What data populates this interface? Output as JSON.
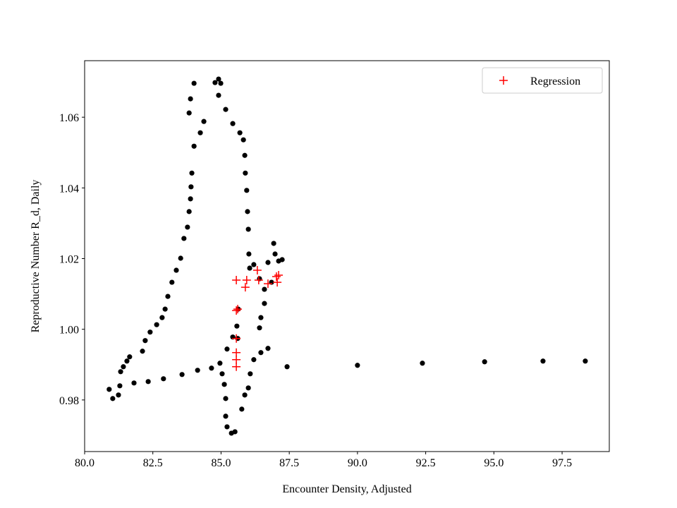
{
  "chart_data": {
    "type": "scatter",
    "xlabel": "Encounter Density, Adjusted",
    "ylabel": "Reproductive Number R_d, Daily",
    "xlim": [
      80.0,
      99.23
    ],
    "ylim": [
      0.9654,
      1.076
    ],
    "xticks": [
      {
        "value": 80,
        "label": "80.0"
      },
      {
        "value": 82.5,
        "label": "82.5"
      },
      {
        "value": 85,
        "label": "85.0"
      },
      {
        "value": 87.5,
        "label": "87.5"
      },
      {
        "value": 90,
        "label": "90.0"
      },
      {
        "value": 92.5,
        "label": "92.5"
      },
      {
        "value": 95,
        "label": "95.0"
      },
      {
        "value": 97.5,
        "label": "97.5"
      }
    ],
    "yticks": [
      0.98,
      {
        "value": 1,
        "label": "1.00"
      },
      1.02,
      1.04,
      1.06
    ],
    "legend": "upper right",
    "series": [
      {
        "color": "#000000",
        "marker": "dot",
        "x": [
          80.9,
          81.03,
          81.24,
          81.32,
          81.42,
          81.55,
          81.65,
          82.12,
          82.22,
          82.4,
          82.64,
          82.84,
          82.95,
          83.05,
          83.2,
          83.36,
          83.52,
          83.64,
          83.77,
          83.83,
          83.88,
          83.9,
          83.93,
          84.01,
          84.24,
          84.37,
          83.83,
          83.88,
          84.01,
          84.78,
          84.91,
          84.99,
          84.91,
          85.17,
          85.43,
          85.69,
          85.82,
          85.87,
          85.89,
          85.94,
          85.97,
          86.0,
          86.02,
          86.05,
          85.63,
          85.58,
          85.61,
          85.43,
          85.22,
          84.96,
          84.65,
          85.04,
          85.12,
          85.17,
          85.17,
          85.22,
          85.38,
          85.51,
          85.76,
          85.87,
          86.0,
          86.07,
          86.2,
          86.46,
          86.72,
          81.29,
          81.81,
          82.33,
          82.89,
          83.57,
          84.14,
          86.2,
          86.41,
          86.59,
          86.59,
          86.46,
          86.41,
          86.72,
          86.93,
          86.98,
          87.11,
          87.24,
          86.85,
          87.42,
          90.0,
          92.38,
          94.66,
          96.8,
          98.35
        ],
        "values": [
          0.983,
          0.9804,
          0.9814,
          0.988,
          0.9894,
          0.991,
          0.9922,
          0.9938,
          0.9968,
          0.9992,
          1.0013,
          1.0033,
          1.0057,
          1.0093,
          1.0133,
          1.0167,
          1.0201,
          1.0257,
          1.0289,
          1.0333,
          1.0369,
          1.0403,
          1.0442,
          1.0518,
          1.0556,
          1.0588,
          1.0612,
          1.0652,
          1.0696,
          1.0698,
          1.0708,
          1.0696,
          1.0662,
          1.0622,
          1.0582,
          1.0556,
          1.0536,
          1.0492,
          1.0442,
          1.0393,
          1.0333,
          1.0283,
          1.0213,
          1.0173,
          1.0057,
          1.0009,
          0.9974,
          0.9978,
          0.9944,
          0.9904,
          0.989,
          0.9874,
          0.9844,
          0.9804,
          0.9754,
          0.9724,
          0.9706,
          0.971,
          0.9774,
          0.9814,
          0.9834,
          0.9874,
          0.9914,
          0.9934,
          0.9946,
          0.984,
          0.9848,
          0.9852,
          0.986,
          0.9872,
          0.9884,
          1.0183,
          1.0143,
          1.0113,
          1.0073,
          1.0033,
          1.0004,
          1.0189,
          1.0243,
          1.0213,
          1.0193,
          1.0197,
          1.0133,
          0.9894,
          0.9898,
          0.9904,
          0.9908,
          0.991,
          0.991
        ]
      },
      {
        "name": "Regression",
        "color": "#ff0000",
        "marker": "plus",
        "x": [
          85.56,
          85.94,
          85.89,
          85.61,
          85.56,
          85.56,
          85.56,
          85.56,
          85.56,
          86.33,
          86.38,
          86.72,
          87.06,
          87.11,
          87.03
        ],
        "values": [
          1.0139,
          1.0139,
          1.0119,
          1.0057,
          1.0053,
          0.9974,
          0.9934,
          0.9914,
          0.9894,
          1.0167,
          1.0139,
          1.0129,
          1.0133,
          1.0153,
          1.0149
        ]
      }
    ]
  }
}
